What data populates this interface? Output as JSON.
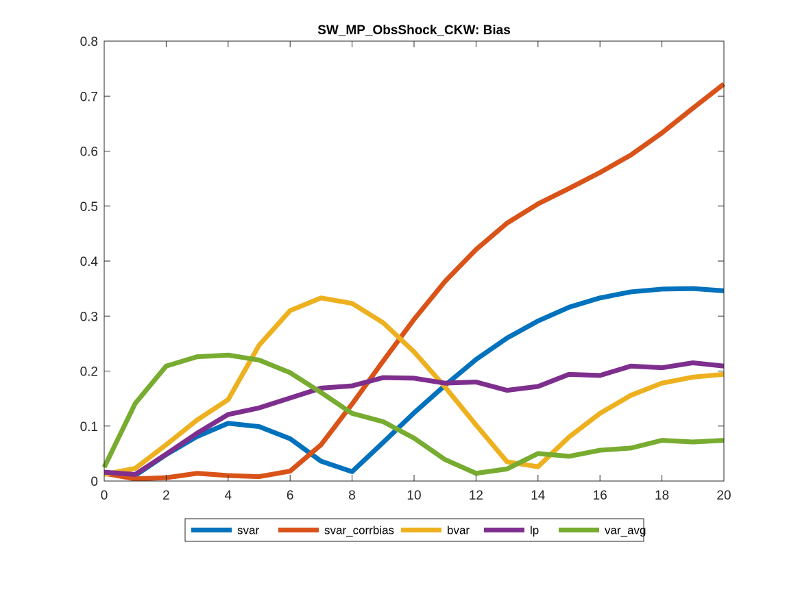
{
  "chart_data": {
    "type": "line",
    "title": "SW_MP_ObsShock_CKW: Bias",
    "xlabel": "",
    "ylabel": "",
    "xlim": [
      0,
      20
    ],
    "ylim": [
      0,
      0.8
    ],
    "x_ticks": [
      0,
      2,
      4,
      6,
      8,
      10,
      12,
      14,
      16,
      18,
      20
    ],
    "y_ticks": [
      0,
      0.1,
      0.2,
      0.3,
      0.4,
      0.5,
      0.6,
      0.7,
      0.8
    ],
    "x_tick_labels": [
      "0",
      "2",
      "4",
      "6",
      "8",
      "10",
      "12",
      "14",
      "16",
      "18",
      "20"
    ],
    "y_tick_labels": [
      "0",
      "0.1",
      "0.2",
      "0.3",
      "0.4",
      "0.5",
      "0.6",
      "0.7",
      "0.8"
    ],
    "grid": false,
    "legend_position": "bottom-outside",
    "x": [
      0,
      1,
      2,
      3,
      4,
      5,
      6,
      7,
      8,
      9,
      10,
      11,
      12,
      13,
      14,
      15,
      16,
      17,
      18,
      19,
      20
    ],
    "series": [
      {
        "name": "svar",
        "color": "#0072BD",
        "values": [
          0.015,
          0.01,
          0.048,
          0.081,
          0.105,
          0.099,
          0.077,
          0.036,
          0.017,
          0.07,
          0.124,
          0.174,
          0.221,
          0.26,
          0.291,
          0.316,
          0.333,
          0.344,
          0.349,
          0.35,
          0.346
        ]
      },
      {
        "name": "svar_corrbias",
        "color": "#D95319",
        "values": [
          0.014,
          0.004,
          0.006,
          0.014,
          0.01,
          0.008,
          0.018,
          0.066,
          0.14,
          0.218,
          0.294,
          0.363,
          0.421,
          0.469,
          0.504,
          0.532,
          0.561,
          0.593,
          0.633,
          0.678,
          0.722
        ]
      },
      {
        "name": "bvar",
        "color": "#EDB120",
        "values": [
          0.012,
          0.023,
          0.066,
          0.111,
          0.148,
          0.247,
          0.31,
          0.333,
          0.323,
          0.288,
          0.235,
          0.171,
          0.102,
          0.035,
          0.026,
          0.08,
          0.123,
          0.156,
          0.178,
          0.189,
          0.194
        ]
      },
      {
        "name": "lp",
        "color": "#7E2F8E",
        "values": [
          0.016,
          0.012,
          0.049,
          0.087,
          0.121,
          0.133,
          0.151,
          0.169,
          0.173,
          0.188,
          0.187,
          0.178,
          0.18,
          0.165,
          0.172,
          0.194,
          0.192,
          0.209,
          0.206,
          0.215,
          0.209
        ]
      },
      {
        "name": "var_avg",
        "color": "#77AC30",
        "values": [
          0.025,
          0.141,
          0.209,
          0.226,
          0.229,
          0.22,
          0.197,
          0.161,
          0.123,
          0.108,
          0.078,
          0.039,
          0.014,
          0.022,
          0.05,
          0.045,
          0.056,
          0.06,
          0.074,
          0.071,
          0.074
        ]
      }
    ]
  }
}
